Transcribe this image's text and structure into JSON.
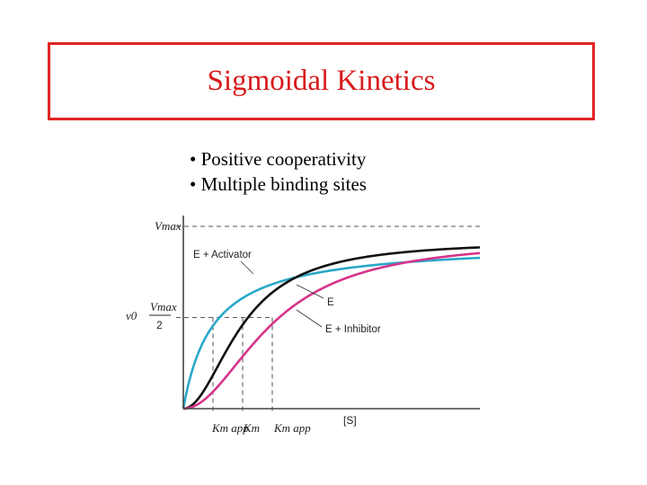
{
  "slide": {
    "title": "Sigmoidal Kinetics",
    "bullets": [
      "• Positive cooperativity",
      "• Multiple binding sites"
    ]
  },
  "chart_data": {
    "type": "line",
    "xlabel": "[S]",
    "ylabel": "v0",
    "y_ticks": {
      "vmax": "Vmax",
      "half_vmax_num": "Vmax",
      "half_vmax_den": "2"
    },
    "x_ticks": {
      "km_app_low": "Km app",
      "km": "Km",
      "km_app_high": "Km app"
    },
    "xlim": [
      0,
      10
    ],
    "ylim": [
      0,
      1
    ],
    "vmax": 1.0,
    "reference_lines": {
      "vmax_level": 1.0,
      "half_vmax_level": 0.5
    },
    "series": [
      {
        "name": "E + Activator",
        "color": "#2aa8c8",
        "model": "hill",
        "k_half": 1.0,
        "n": 1.0,
        "vmax": 0.91
      },
      {
        "name": "E",
        "color": "#111111",
        "model": "hill",
        "k_half": 2.0,
        "n": 2.0,
        "vmax": 0.92
      },
      {
        "name": "E + Inhibitor",
        "color": "#d6338a",
        "model": "hill",
        "k_half": 3.0,
        "n": 2.0,
        "vmax": 0.93
      }
    ],
    "km_markers": [
      1.0,
      2.0,
      3.0
    ]
  }
}
